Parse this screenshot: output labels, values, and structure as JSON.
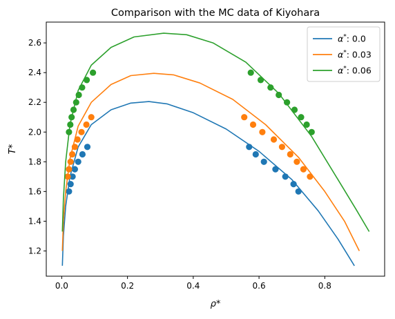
{
  "chart_data": {
    "type": "line",
    "title": "Comparison with the MC data of Kiyohara",
    "xlabel": "ρ*",
    "ylabel": "T*",
    "xlim": [
      -0.047,
      0.982
    ],
    "ylim": [
      1.03,
      2.74
    ],
    "xticks": [
      0.0,
      0.2,
      0.4,
      0.6,
      0.8
    ],
    "xtick_labels": [
      "0.0",
      "0.2",
      "0.4",
      "0.6",
      "0.8"
    ],
    "yticks": [
      1.2,
      1.4,
      1.6,
      1.8,
      2.0,
      2.2,
      2.4,
      2.6
    ],
    "ytick_labels": [
      "1.2",
      "1.4",
      "1.6",
      "1.8",
      "2.0",
      "2.2",
      "2.4",
      "2.6"
    ],
    "grid": false,
    "legend_position": "top-right",
    "series": [
      {
        "name": "α*: 0.0",
        "legend_symbol": "α",
        "legend_value": ": 0.0",
        "color": "#1f77b4",
        "curve": [
          [
            0.002,
            1.1
          ],
          [
            0.005,
            1.3
          ],
          [
            0.012,
            1.5
          ],
          [
            0.025,
            1.7
          ],
          [
            0.05,
            1.9
          ],
          [
            0.09,
            2.05
          ],
          [
            0.15,
            2.15
          ],
          [
            0.21,
            2.195
          ],
          [
            0.265,
            2.205
          ],
          [
            0.32,
            2.19
          ],
          [
            0.4,
            2.13
          ],
          [
            0.5,
            2.02
          ],
          [
            0.6,
            1.87
          ],
          [
            0.7,
            1.68
          ],
          [
            0.78,
            1.47
          ],
          [
            0.84,
            1.28
          ],
          [
            0.89,
            1.1
          ]
        ],
        "points": [
          [
            0.022,
            1.6
          ],
          [
            0.027,
            1.65
          ],
          [
            0.033,
            1.7
          ],
          [
            0.04,
            1.75
          ],
          [
            0.05,
            1.8
          ],
          [
            0.063,
            1.85
          ],
          [
            0.078,
            1.9
          ],
          [
            0.57,
            1.9
          ],
          [
            0.59,
            1.85
          ],
          [
            0.615,
            1.8
          ],
          [
            0.65,
            1.75
          ],
          [
            0.68,
            1.7
          ],
          [
            0.705,
            1.65
          ],
          [
            0.72,
            1.6
          ]
        ]
      },
      {
        "name": "α*: 0.03",
        "legend_symbol": "α",
        "legend_value": ": 0.03",
        "color": "#ff7f0e",
        "curve": [
          [
            0.002,
            1.2
          ],
          [
            0.005,
            1.4
          ],
          [
            0.012,
            1.6
          ],
          [
            0.025,
            1.82
          ],
          [
            0.05,
            2.04
          ],
          [
            0.09,
            2.2
          ],
          [
            0.15,
            2.32
          ],
          [
            0.21,
            2.38
          ],
          [
            0.28,
            2.395
          ],
          [
            0.34,
            2.385
          ],
          [
            0.42,
            2.33
          ],
          [
            0.52,
            2.22
          ],
          [
            0.62,
            2.05
          ],
          [
            0.72,
            1.83
          ],
          [
            0.8,
            1.6
          ],
          [
            0.86,
            1.4
          ],
          [
            0.905,
            1.2
          ]
        ],
        "points": [
          [
            0.018,
            1.7
          ],
          [
            0.022,
            1.75
          ],
          [
            0.027,
            1.8
          ],
          [
            0.032,
            1.85
          ],
          [
            0.04,
            1.9
          ],
          [
            0.048,
            1.95
          ],
          [
            0.06,
            2.0
          ],
          [
            0.075,
            2.05
          ],
          [
            0.09,
            2.1
          ],
          [
            0.555,
            2.1
          ],
          [
            0.582,
            2.05
          ],
          [
            0.61,
            2.0
          ],
          [
            0.645,
            1.95
          ],
          [
            0.67,
            1.9
          ],
          [
            0.695,
            1.85
          ],
          [
            0.715,
            1.8
          ],
          [
            0.735,
            1.75
          ],
          [
            0.755,
            1.7
          ]
        ]
      },
      {
        "name": "α*: 0.06",
        "legend_symbol": "α",
        "legend_value": ": 0.06",
        "color": "#2ca02c",
        "curve": [
          [
            0.002,
            1.33
          ],
          [
            0.005,
            1.55
          ],
          [
            0.012,
            1.8
          ],
          [
            0.025,
            2.05
          ],
          [
            0.05,
            2.28
          ],
          [
            0.09,
            2.45
          ],
          [
            0.15,
            2.57
          ],
          [
            0.22,
            2.64
          ],
          [
            0.31,
            2.665
          ],
          [
            0.38,
            2.655
          ],
          [
            0.46,
            2.6
          ],
          [
            0.56,
            2.47
          ],
          [
            0.66,
            2.26
          ],
          [
            0.76,
            1.97
          ],
          [
            0.84,
            1.68
          ],
          [
            0.895,
            1.48
          ],
          [
            0.935,
            1.33
          ]
        ],
        "points": [
          [
            0.022,
            2.0
          ],
          [
            0.026,
            2.05
          ],
          [
            0.03,
            2.1
          ],
          [
            0.036,
            2.15
          ],
          [
            0.044,
            2.2
          ],
          [
            0.052,
            2.25
          ],
          [
            0.062,
            2.3
          ],
          [
            0.076,
            2.35
          ],
          [
            0.095,
            2.4
          ],
          [
            0.575,
            2.4
          ],
          [
            0.605,
            2.35
          ],
          [
            0.635,
            2.3
          ],
          [
            0.66,
            2.25
          ],
          [
            0.685,
            2.2
          ],
          [
            0.708,
            2.15
          ],
          [
            0.728,
            2.1
          ],
          [
            0.745,
            2.05
          ],
          [
            0.76,
            2.0
          ]
        ]
      }
    ]
  }
}
